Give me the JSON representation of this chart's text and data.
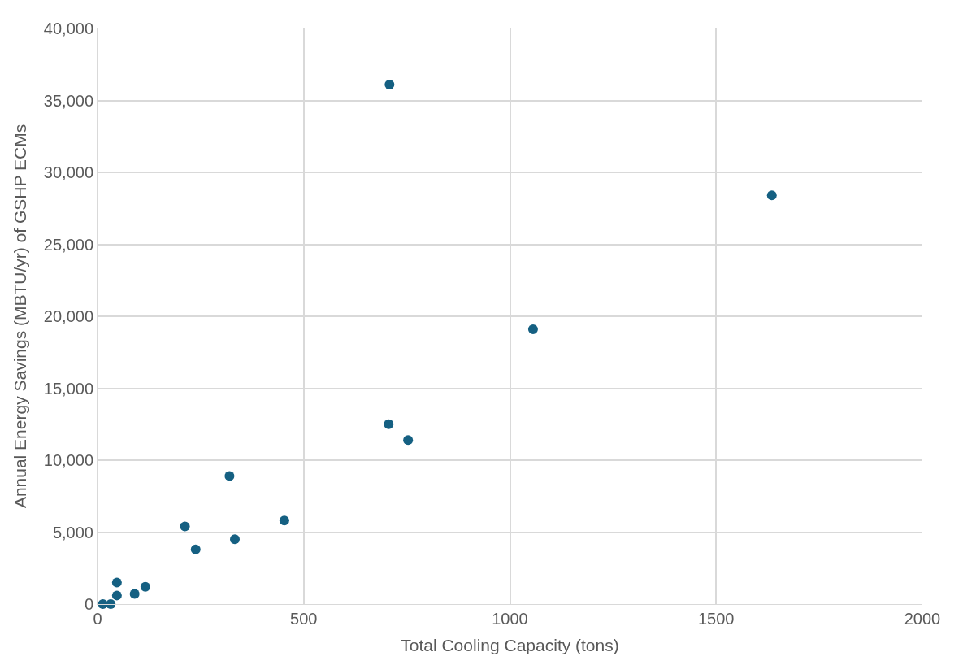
{
  "chart_data": {
    "type": "scatter",
    "xlabel": "Total Cooling Capacity (tons)",
    "ylabel": "Annual Energy Savings (MBTU/yr) of GSHP ECMs",
    "series": [
      {
        "color": "#156082",
        "x": [
          708,
          1635,
          1056,
          706,
          753,
          320,
          212,
          453,
          238,
          333,
          116,
          47,
          47,
          90,
          13,
          26,
          32
        ],
        "values": [
          36100,
          28400,
          19100,
          12500,
          11400,
          8900,
          5400,
          5800,
          3800,
          4500,
          1200,
          1500,
          600,
          700,
          0,
          null,
          0
        ]
      }
    ],
    "xlim": [
      0,
      2000
    ],
    "xticks": [
      0,
      500,
      1000,
      1500,
      2000
    ],
    "ylim": [
      0,
      40000
    ],
    "yticks": [
      {
        "value": 0,
        "label": "0"
      },
      {
        "value": 5000,
        "label": "5,000"
      },
      {
        "value": 10000,
        "label": "10,000"
      },
      {
        "value": 15000,
        "label": "15,000"
      },
      {
        "value": 20000,
        "label": "20,000"
      },
      {
        "value": 25000,
        "label": "25,000"
      },
      {
        "value": 30000,
        "label": "30,000"
      },
      {
        "value": 35000,
        "label": "35,000"
      },
      {
        "value": 40000,
        "label": "40,000"
      }
    ],
    "grid": true,
    "marker": "circle",
    "legend": false
  }
}
